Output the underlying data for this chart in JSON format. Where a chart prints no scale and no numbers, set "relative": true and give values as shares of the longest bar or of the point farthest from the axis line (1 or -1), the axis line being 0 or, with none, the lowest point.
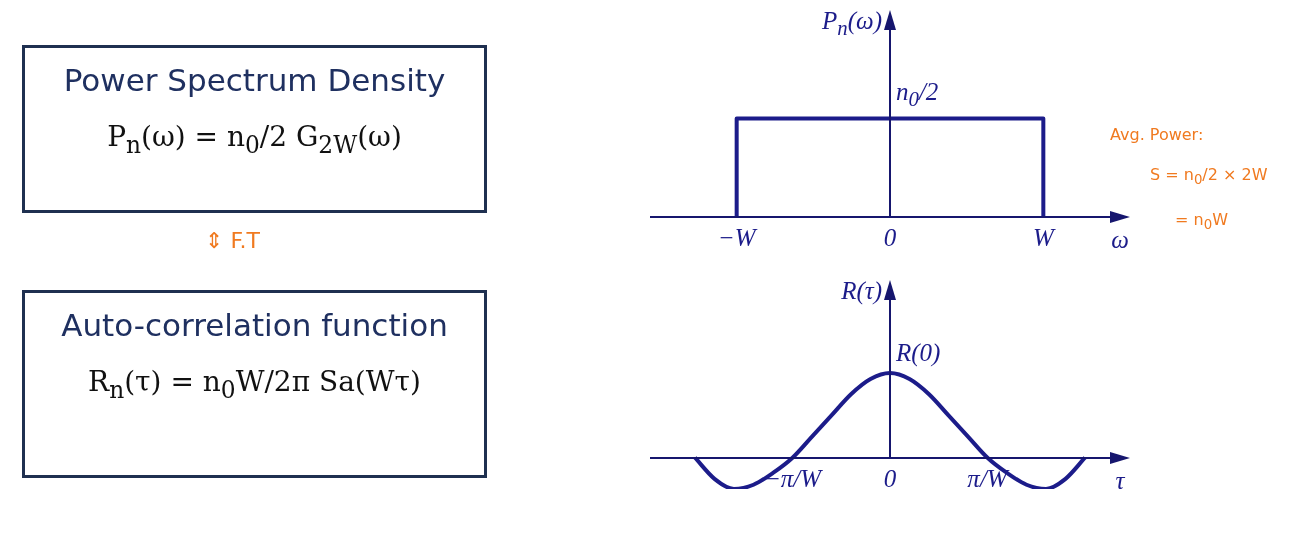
{
  "chart_data": [
    {
      "type": "other",
      "title": "Power Spectrum Density",
      "annotations": [
        "P$_{n}$(ω) = n$_{0}$/2 G$_{2W}$(ω)",
        "⇕ F.T"
      ]
    },
    {
      "type": "other",
      "title": "Auto-correlation function",
      "annotations": [
        "R$_{n}$(τ) = n$_{0}$W/2π Sa(Wτ)"
      ]
    },
    {
      "type": "line",
      "relative": true,
      "ylabel": "P$_{n}$(ω)",
      "xlabel": "ω",
      "categories": [
        null,
        null,
        "−W",
        null,
        null,
        null,
        "0",
        null,
        null,
        null,
        "W",
        null,
        null
      ],
      "series": [
        {
          "color": "#1c1c8a",
          "x": [
            "−W",
            "−W",
            "W",
            "W"
          ],
          "values": [
            0,
            1,
            1,
            0
          ]
        }
      ],
      "annotations": [
        {
          "text": "n$_{0}$/2",
          "x": "0",
          "y": 1
        },
        "Avg. Power:",
        "S = n$_{0}$/2 × 2W",
        "= n$_{0}$W"
      ]
    },
    {
      "type": "line",
      "relative": true,
      "ylabel": "R(τ)",
      "xlabel": "τ",
      "categories": [
        null,
        null,
        null,
        null,
        null,
        "−π/W",
        null,
        null,
        null,
        null,
        "0",
        null,
        null,
        null,
        null,
        "π/W",
        null,
        null,
        null,
        null,
        null
      ],
      "series": [
        {
          "color": "#1c1c8a",
          "values": [
            0,
            -0.25,
            -0.37,
            -0.32,
            -0.18,
            0,
            0.25,
            0.5,
            0.75,
            0.93,
            1,
            0.93,
            0.75,
            0.5,
            0.25,
            0,
            -0.18,
            -0.32,
            -0.37,
            -0.25,
            0
          ]
        }
      ],
      "annotations": [
        {
          "text": "R(0)",
          "x": "0",
          "y": 1
        }
      ]
    }
  ]
}
